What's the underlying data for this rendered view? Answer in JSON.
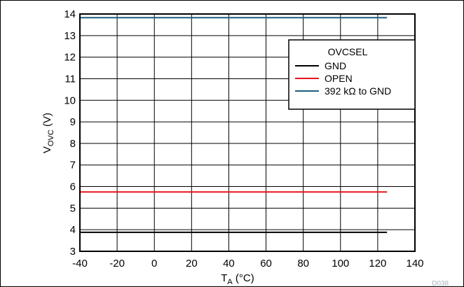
{
  "chart_data": {
    "type": "line",
    "x": [
      -40,
      125
    ],
    "xticks": [
      "-40",
      "-20",
      "0",
      "20",
      "40",
      "60",
      "80",
      "100",
      "120",
      "140"
    ],
    "yticks": [
      "3",
      "4",
      "5",
      "6",
      "7",
      "8",
      "9",
      "10",
      "11",
      "12",
      "13",
      "14"
    ],
    "xlim": [
      -40,
      140
    ],
    "ylim": [
      3,
      14
    ],
    "xlabel": {
      "main": "T",
      "sub": "A",
      "unit": " (°C)"
    },
    "ylabel": {
      "main": "V",
      "sub": "OVC",
      "unit": " (V)"
    },
    "grid": true,
    "legend": {
      "title": "OVCSEL",
      "placement": "top-right"
    },
    "series": [
      {
        "name": "GND",
        "color": "#000000",
        "values": [
          3.88,
          3.88
        ]
      },
      {
        "name": "OPEN",
        "color": "#e8141b",
        "values": [
          5.75,
          5.75
        ]
      },
      {
        "name": "392 kΩ to GND",
        "color": "#1b5f7c",
        "values": [
          13.83,
          13.83
        ]
      }
    ]
  },
  "watermark": "D038"
}
